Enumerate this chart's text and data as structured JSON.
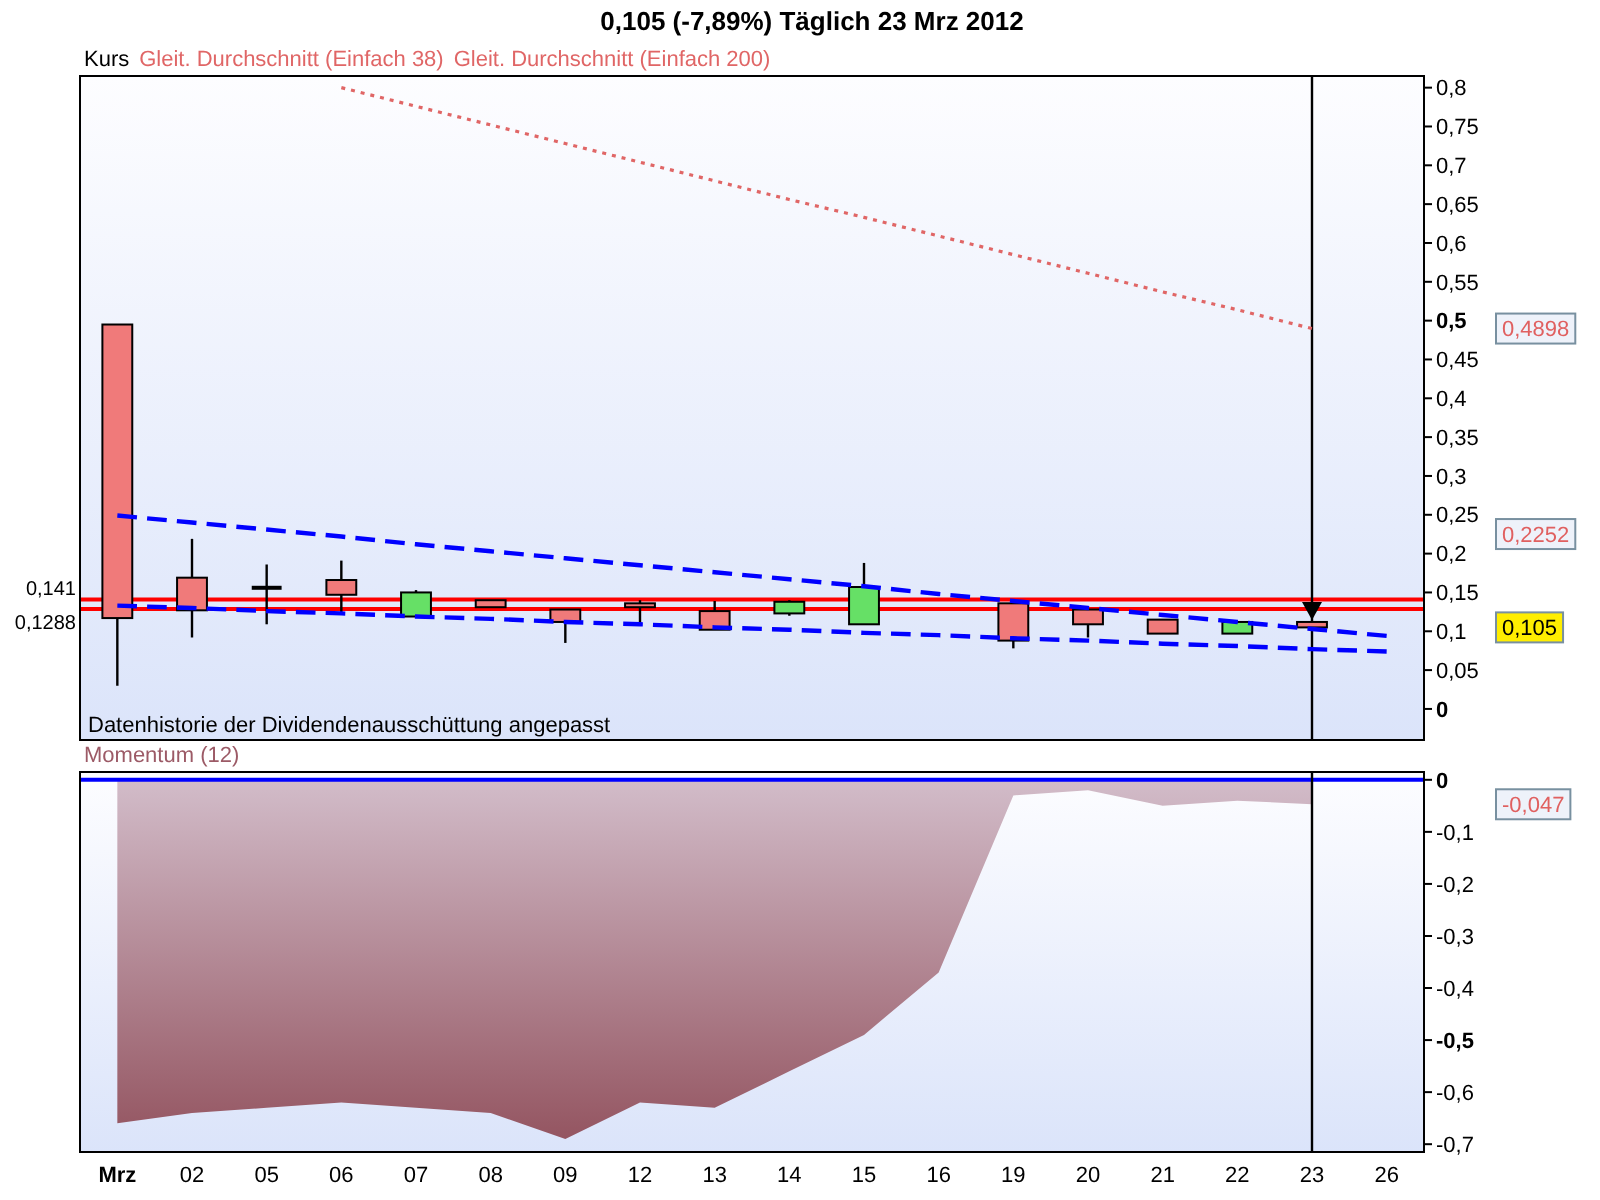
{
  "chart_data": [
    {
      "type": "candlestick",
      "title": "0,105 (-7,89%) Täglich 23 Mrz 2012",
      "legend_title": "Kurs",
      "categories": [
        null,
        null,
        null,
        null,
        null,
        null,
        null,
        null,
        null,
        null,
        null,
        null,
        null,
        null,
        null,
        null,
        null,
        null
      ],
      "series": [
        {
          "color": "#000000",
          "colors": [
            "#f07a7a",
            "#f07a7a",
            "#000000",
            "#f07a7a",
            "#66e066",
            "#f07a7a",
            "#f07a7a",
            "#f07a7a",
            "#f07a7a",
            "#66e066",
            "#66e066",
            null,
            "#f07a7a",
            "#f07a7a",
            "#f07a7a",
            "#66e066",
            "#f07a7a",
            null
          ],
          "ohlc": [
            [
              0.495,
              0.495,
              0.03,
              0.117
            ],
            [
              0.169,
              0.219,
              0.092,
              0.127
            ],
            [
              0.156,
              0.186,
              0.109,
              0.156
            ],
            [
              0.166,
              0.191,
              0.121,
              0.147
            ],
            [
              0.119,
              0.153,
              0.119,
              0.15
            ],
            [
              0.14,
              0.14,
              0.131,
              0.131
            ],
            [
              0.128,
              0.128,
              0.085,
              0.112
            ],
            [
              0.136,
              0.14,
              0.109,
              0.131
            ],
            [
              0.126,
              0.139,
              0.102,
              0.102
            ],
            [
              0.123,
              0.14,
              0.12,
              0.138
            ],
            [
              0.109,
              0.188,
              0.109,
              0.157
            ],
            null,
            [
              0.136,
              0.136,
              0.078,
              0.088
            ],
            [
              0.128,
              0.13,
              0.092,
              0.109
            ],
            [
              0.115,
              0.115,
              0.097,
              0.097
            ],
            [
              0.097,
              0.112,
              0.097,
              0.112
            ],
            [
              0.112,
              0.112,
              0.105,
              0.105
            ],
            null
          ]
        },
        {
          "name": "Gleit. Durchschnitt (Einfach 38)",
          "type": "line",
          "color": "#e06666",
          "values": [
            null,
            null,
            null,
            null,
            null,
            null,
            null,
            null,
            null,
            null,
            null,
            null,
            null,
            null,
            null,
            null,
            null,
            null
          ]
        },
        {
          "name": "Gleit. Durchschnitt (Einfach 200)",
          "type": "line",
          "color": "#e06666",
          "line_style": "dotted",
          "values": [
            null,
            null,
            null,
            0.8,
            0.776,
            0.752,
            0.728,
            0.704,
            0.68,
            0.656,
            0.633,
            0.609,
            0.585,
            0.561,
            0.537,
            0.514,
            0.4898,
            null
          ]
        },
        {
          "type": "line",
          "color": "#0000ff",
          "line_style": "dashed",
          "values": [
            0.249,
            0.24,
            0.231,
            0.222,
            0.212,
            0.203,
            0.194,
            0.185,
            0.176,
            0.167,
            0.158,
            0.148,
            0.139,
            0.13,
            0.121,
            0.112,
            0.103,
            0.094
          ]
        },
        {
          "type": "line",
          "color": "#0000ff",
          "line_style": "dashed",
          "values": [
            0.133,
            0.13,
            0.126,
            0.123,
            0.119,
            0.116,
            0.112,
            0.109,
            0.105,
            0.102,
            0.098,
            0.095,
            0.091,
            0.088,
            0.084,
            0.081,
            0.077,
            0.074
          ]
        }
      ],
      "ylim": [
        -0.04,
        0.815
      ],
      "yticks": [
        0,
        {
          "value": 0.05,
          "label": "0,05"
        },
        {
          "value": 0.1,
          "label": "0,1"
        },
        {
          "value": 0.15,
          "label": "0,15"
        },
        {
          "value": 0.2,
          "label": "0,2"
        },
        {
          "value": 0.25,
          "label": "0,25"
        },
        {
          "value": 0.3,
          "label": "0,3"
        },
        {
          "value": 0.35,
          "label": "0,35"
        },
        {
          "value": 0.4,
          "label": "0,4"
        },
        {
          "value": 0.45,
          "label": "0,45"
        },
        {
          "value": 0.5,
          "label": "0,5"
        },
        {
          "value": 0.55,
          "label": "0,55"
        },
        {
          "value": 0.6,
          "label": "0,6"
        },
        {
          "value": 0.65,
          "label": "0,65"
        },
        {
          "value": 0.7,
          "label": "0,7"
        },
        {
          "value": 0.75,
          "label": "0,75"
        },
        {
          "value": 0.8,
          "label": "0,8"
        }
      ],
      "ref_lines": [
        {
          "axis": "y",
          "value": 0.141,
          "label": "0,141",
          "color": "#ff0000"
        },
        {
          "axis": "y",
          "value": 0.1288,
          "label": "0,1288",
          "color": "#ff0000"
        },
        {
          "axis": "x",
          "value": "23",
          "color": "#000000"
        }
      ],
      "annotations": [
        "Datenhistorie der Dividendenausschüttung angepasst",
        "0,4898",
        "0,2252",
        "0,105"
      ],
      "legend": "top left",
      "tick_labels": "y"
    },
    {
      "type": "area",
      "categories": [
        "Mrz",
        "02",
        "05",
        "06",
        "07",
        "08",
        "09",
        "12",
        "13",
        "14",
        "15",
        "16",
        "19",
        "20",
        "21",
        "22",
        "23",
        "26"
      ],
      "series": [
        {
          "name": "Momentum (12)",
          "color": "#9c5a66",
          "values": [
            -0.66,
            -0.64,
            -0.63,
            -0.62,
            -0.63,
            -0.64,
            -0.69,
            -0.62,
            -0.63,
            -0.56,
            -0.49,
            -0.37,
            -0.03,
            -0.02,
            -0.05,
            -0.04,
            -0.047,
            null
          ]
        }
      ],
      "ylim": [
        -0.715,
        0.015
      ],
      "yticks": [
        0,
        {
          "value": -0.1,
          "label": "-0,1"
        },
        {
          "value": -0.2,
          "label": "-0,2"
        },
        {
          "value": -0.3,
          "label": "-0,3"
        },
        {
          "value": -0.4,
          "label": "-0,4"
        },
        {
          "value": -0.5,
          "label": "-0,5"
        },
        {
          "value": -0.6,
          "label": "-0,6"
        },
        {
          "value": -0.7,
          "label": "-0,7"
        }
      ],
      "ref_lines": [
        {
          "axis": "y",
          "value": 0,
          "color": "#0000ff"
        },
        {
          "axis": "x",
          "value": "23",
          "color": "#000000"
        }
      ],
      "annotations": [
        "-0,047"
      ],
      "legend": "top left"
    }
  ]
}
